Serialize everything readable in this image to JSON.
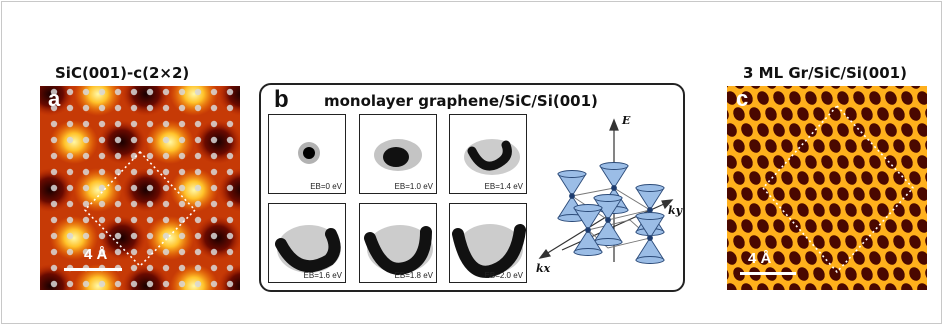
{
  "colors": {
    "border": "#222222",
    "stm_dark": "#2a0400",
    "stm_bright": "#fff27a",
    "cone": "#8fb4de"
  },
  "panel_a": {
    "title": "SiC(001)-c(2×2)",
    "letter": "a",
    "scale": "4 Å"
  },
  "panel_b": {
    "letter": "b",
    "title": "monolayer graphene/SiC/Si(001)",
    "spectra": [
      {
        "label": "EB=0 eV"
      },
      {
        "label": "EB=1.0 eV"
      },
      {
        "label": "EB=1.4 eV"
      },
      {
        "label": "EB=1.6 eV"
      },
      {
        "label": "EB=1.8 eV"
      },
      {
        "label": "EB=2.0 eV"
      }
    ],
    "axes": {
      "e": "E",
      "kx": "kx",
      "ky": "ky"
    }
  },
  "panel_c": {
    "title": "3 ML Gr/SiC/Si(001)",
    "letter": "c",
    "scale": "4 Å"
  }
}
